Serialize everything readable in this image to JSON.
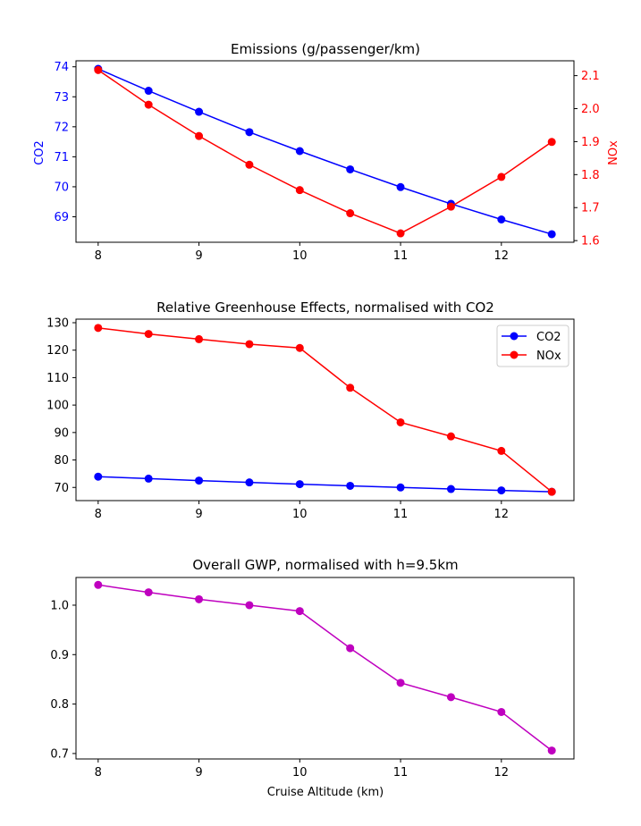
{
  "colors": {
    "co2": "#0000ff",
    "nox": "#ff0000",
    "gwp": "#bf00bf",
    "axis": "#000000",
    "background": "#ffffff"
  },
  "chart_data": [
    {
      "type": "line",
      "title": "Emissions (g/passenger/km)",
      "xlabel": "",
      "x": [
        8,
        8.5,
        9,
        9.5,
        10,
        10.5,
        11,
        11.5,
        12,
        12.5
      ],
      "xlim": [
        7.78,
        12.72
      ],
      "xticks": [
        8,
        9,
        10,
        11,
        12
      ],
      "dual_axis": true,
      "left_axis": {
        "label": "CO2",
        "ylim": [
          68.15,
          74.2
        ],
        "ticks": [
          69,
          70,
          71,
          72,
          73,
          74
        ],
        "tick_labels": [
          "69",
          "70",
          "71",
          "72",
          "73",
          "74"
        ],
        "color": "#0000ff"
      },
      "right_axis": {
        "label": "NOx",
        "ylim": [
          1.595,
          2.145
        ],
        "ticks": [
          1.6,
          1.7,
          1.8,
          1.9,
          2.0,
          2.1
        ],
        "tick_labels": [
          "1.6",
          "1.7",
          "1.8",
          "1.9",
          "2.0",
          "2.1"
        ],
        "color": "#ff0000"
      },
      "series": [
        {
          "name": "CO2",
          "axis": "left",
          "color": "#0000ff",
          "values": [
            73.93,
            73.2,
            72.5,
            71.82,
            71.19,
            70.58,
            69.99,
            69.43,
            68.91,
            68.42
          ]
        },
        {
          "name": "NOx",
          "axis": "right",
          "color": "#ff0000",
          "values": [
            2.117,
            2.012,
            1.917,
            1.83,
            1.753,
            1.683,
            1.622,
            1.703,
            1.793,
            1.899
          ]
        }
      ],
      "grid": false
    },
    {
      "type": "line",
      "title": "Relative Greenhouse Effects, normalised with CO2",
      "xlabel": "",
      "x": [
        8,
        8.5,
        9,
        9.5,
        10,
        10.5,
        11,
        11.5,
        12,
        12.5
      ],
      "xlim": [
        7.78,
        12.72
      ],
      "xticks": [
        8,
        9,
        10,
        11,
        12
      ],
      "ylabel": "",
      "ylim": [
        65.2,
        131.3
      ],
      "yticks": [
        70,
        80,
        90,
        100,
        110,
        120,
        130
      ],
      "ytick_labels": [
        "70",
        "80",
        "90",
        "100",
        "110",
        "120",
        "130"
      ],
      "legend": {
        "position": "upper-right",
        "entries": [
          "CO2",
          "NOx"
        ]
      },
      "series": [
        {
          "name": "CO2",
          "color": "#0000ff",
          "values": [
            73.93,
            73.2,
            72.5,
            71.82,
            71.19,
            70.58,
            69.99,
            69.43,
            68.91,
            68.42
          ]
        },
        {
          "name": "NOx",
          "color": "#ff0000",
          "values": [
            128.1,
            125.9,
            124.0,
            122.2,
            120.8,
            106.3,
            93.7,
            88.6,
            83.3,
            68.4
          ]
        }
      ],
      "grid": false
    },
    {
      "type": "line",
      "title": "Overall GWP, normalised with h=9.5km",
      "xlabel": "Cruise Altitude (km)",
      "x": [
        8,
        8.5,
        9,
        9.5,
        10,
        10.5,
        11,
        11.5,
        12,
        12.5
      ],
      "xlim": [
        7.78,
        12.72
      ],
      "xticks": [
        8,
        9,
        10,
        11,
        12
      ],
      "ylabel": "",
      "ylim": [
        0.689,
        1.056
      ],
      "yticks": [
        0.7,
        0.8,
        0.9,
        1.0
      ],
      "ytick_labels": [
        "0.7",
        "0.8",
        "0.9",
        "1.0"
      ],
      "series": [
        {
          "name": "",
          "color": "#bf00bf",
          "values": [
            1.041,
            1.026,
            1.012,
            1.0,
            0.988,
            0.913,
            0.843,
            0.814,
            0.784,
            0.706
          ]
        }
      ],
      "grid": false
    }
  ]
}
